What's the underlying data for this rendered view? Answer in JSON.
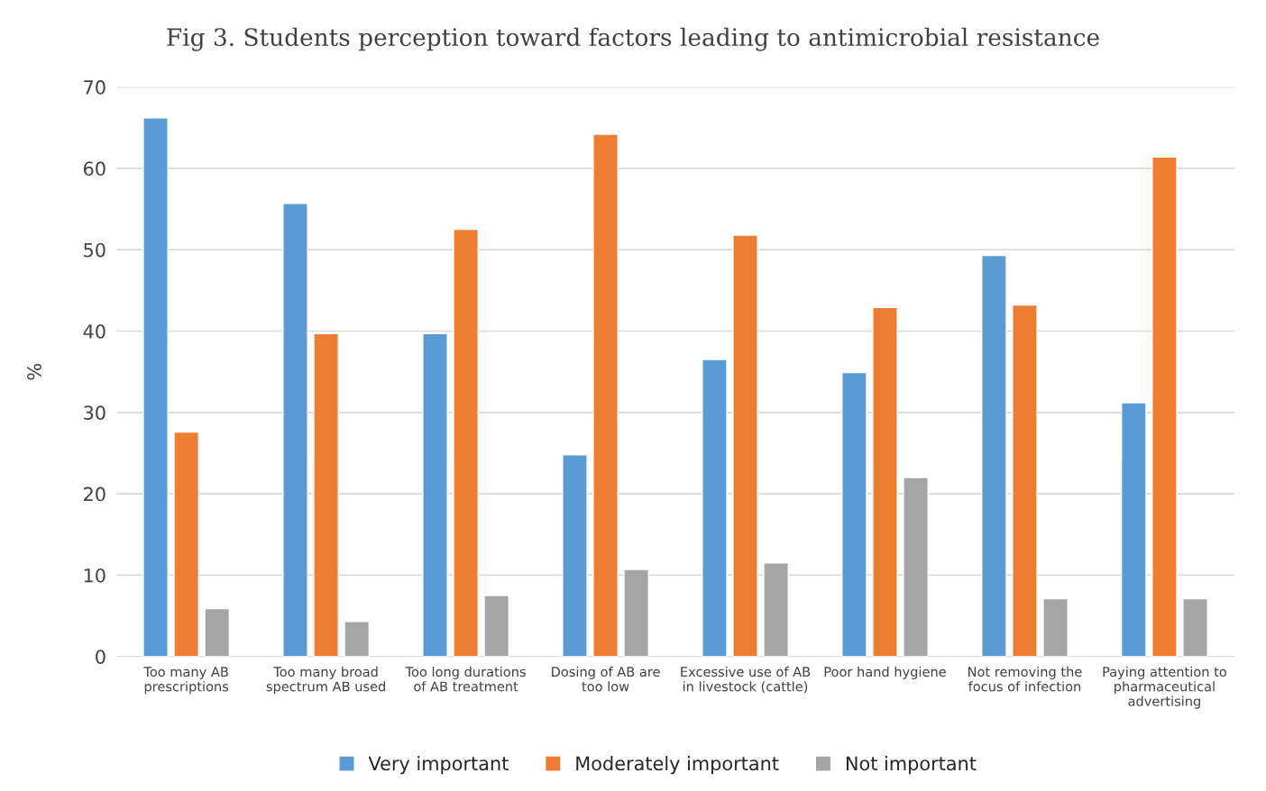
{
  "chart_data": {
    "type": "bar",
    "title": "Fig 3. Students perception toward factors leading to antimicrobial resistance",
    "ylabel": "%",
    "categories": [
      "Too many AB\nprescriptions",
      "Too many broad\nspectrum AB used",
      "Too long durations\nof AB treatment",
      "Dosing of AB are\ntoo low",
      "Excessive use of AB\nin livestock (cattle)",
      "Poor hand hygiene",
      "Not removing the\nfocus of infection",
      "Paying attention to\npharmaceutical\nadvertising"
    ],
    "series": [
      {
        "name": "Very important",
        "color": "#5b9bd5",
        "values": [
          66.2,
          55.7,
          39.7,
          24.8,
          36.5,
          34.9,
          49.3,
          31.2
        ]
      },
      {
        "name": "Moderately important",
        "color": "#ed7d31",
        "values": [
          27.6,
          39.7,
          52.5,
          64.2,
          51.8,
          42.9,
          43.2,
          61.4
        ]
      },
      {
        "name": "Not important",
        "color": "#a5a5a5",
        "values": [
          5.9,
          4.3,
          7.5,
          10.7,
          11.5,
          22.0,
          7.1,
          7.1
        ]
      }
    ],
    "ylim": [
      0,
      70
    ],
    "yticks": [
      0,
      10,
      20,
      30,
      40,
      50,
      60,
      70
    ],
    "grid": "y",
    "legend": "bottom"
  }
}
